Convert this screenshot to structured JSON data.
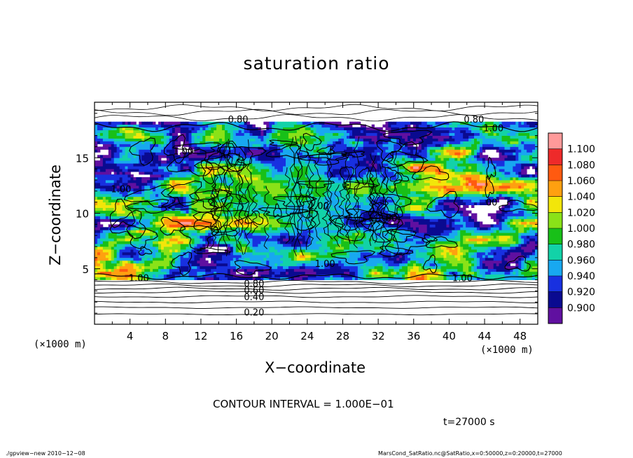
{
  "chart_data": {
    "type": "heatmap",
    "title": "saturation ratio",
    "xlabel": "X−coordinate",
    "ylabel": "Z−coordinate",
    "x_unit": "(×1000 m)",
    "xlim": [
      0,
      50
    ],
    "ylim": [
      0,
      20
    ],
    "x_ticks": [
      4,
      8,
      12,
      16,
      20,
      24,
      28,
      32,
      36,
      40,
      44,
      48
    ],
    "y_ticks": [
      5,
      10,
      15
    ],
    "colorbar": {
      "levels": [
        "1.100",
        "1.080",
        "1.060",
        "1.040",
        "1.020",
        "1.000",
        "0.980",
        "0.960",
        "0.940",
        "0.920",
        "0.900"
      ],
      "colors": [
        "#ff9a9a",
        "#ee2a2a",
        "#ff5a10",
        "#ffa010",
        "#f2e60a",
        "#8ae218",
        "#18c018",
        "#12d2a8",
        "#18a8f0",
        "#1830e0",
        "#0a0a90",
        "#6010a0"
      ]
    },
    "contour_interval": 0.1,
    "contour_labels": [
      {
        "text": "0.80",
        "x": 16.2,
        "z": 18.5
      },
      {
        "text": "0.80",
        "x": 42.8,
        "z": 18.5
      },
      {
        "text": "1.00",
        "x": 45.0,
        "z": 17.7
      },
      {
        "text": "1.00",
        "x": 10.0,
        "z": 15.6
      },
      {
        "text": "1.00",
        "x": 3.0,
        "z": 12.2
      },
      {
        "text": "1.00",
        "x": 25.3,
        "z": 10.7
      },
      {
        "text": "1.00",
        "x": 33.0,
        "z": 9.6
      },
      {
        "text": "00",
        "x": 44.8,
        "z": 11.0
      },
      {
        "text": "1.00",
        "x": 26.0,
        "z": 5.5
      },
      {
        "text": "1.00",
        "x": 5.0,
        "z": 4.2
      },
      {
        "text": "1.00",
        "x": 41.5,
        "z": 4.2
      },
      {
        "text": "0.80",
        "x": 18.0,
        "z": 3.7
      },
      {
        "text": "0.60",
        "x": 18.0,
        "z": 3.1
      },
      {
        "text": "0.40",
        "x": 18.0,
        "z": 2.5
      },
      {
        "text": "0.20",
        "x": 18.0,
        "z": 1.1
      }
    ]
  },
  "annotations": {
    "contour_interval_text": "CONTOUR INTERVAL = 1.000E−01",
    "time_text": "t=27000 s",
    "footer_left": "./gpview−new  2010−12−08",
    "footer_right": "MarsCond_SatRatio.nc@SatRatio,x=0:50000,z=0:20000,t=27000"
  }
}
